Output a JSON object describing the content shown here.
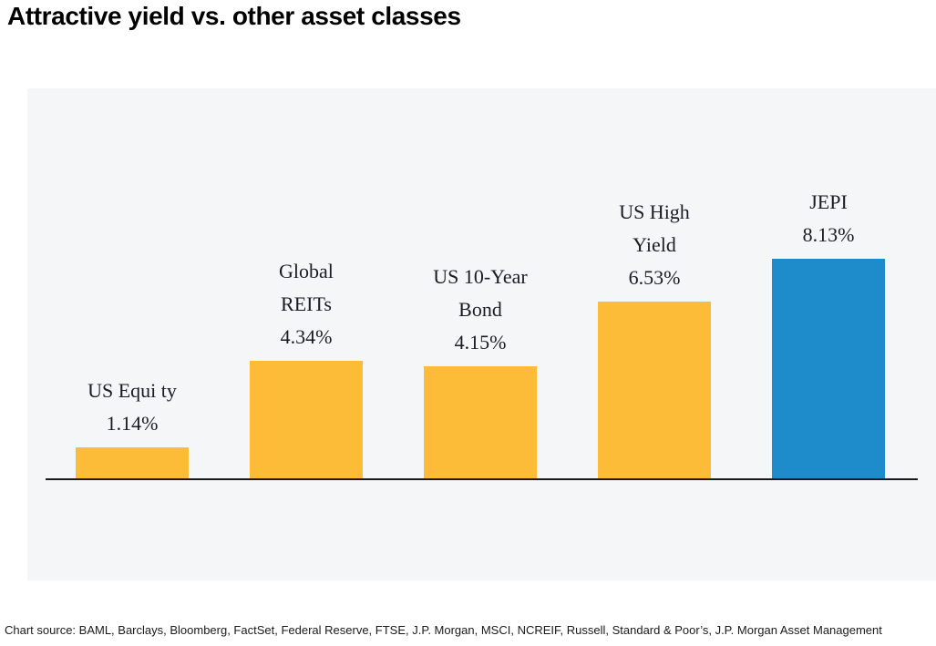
{
  "page": {
    "title": "Attractive yield vs. other asset classes",
    "source_note": "Chart source: BAML, Barclays, Bloomberg, FactSet, Federal Reserve, FTSE, J.P. Morgan, MSCI, NCREIF, Russell, Standard & Poor’s, J.P. Morgan Asset Management"
  },
  "chart_data": {
    "type": "bar",
    "title": "Attractive yield vs. other asset classes",
    "categories": [
      "US Equi ty",
      "Global REITs",
      "US 10-Year Bond",
      "US High Yield",
      "JEPI"
    ],
    "series": [
      {
        "name": "Yield",
        "values": [
          1.14,
          4.34,
          4.15,
          6.53,
          8.13
        ]
      }
    ],
    "points": [
      {
        "label_lines": [
          "US Equi ty"
        ],
        "value": 1.14,
        "value_label": "1.14%",
        "color": "#FCBC38"
      },
      {
        "label_lines": [
          "Global",
          "REITs"
        ],
        "value": 4.34,
        "value_label": "4.34%",
        "color": "#FCBC38"
      },
      {
        "label_lines": [
          "US 10-Year",
          "Bond"
        ],
        "value": 4.15,
        "value_label": "4.15%",
        "color": "#FCBC38"
      },
      {
        "label_lines": [
          "US High",
          "Yield"
        ],
        "value": 6.53,
        "value_label": "6.53%",
        "color": "#FCBC38"
      },
      {
        "label_lines": [
          "JEPI"
        ],
        "value": 8.13,
        "value_label": "8.13%",
        "color": "#1E8CCA"
      }
    ],
    "highlight_index": 4,
    "data_labels": "above-bar",
    "xlabel": "",
    "ylabel": "",
    "ylim": [
      0,
      9
    ],
    "grid": false,
    "legend": "none",
    "axis_shown": "x-baseline-only"
  },
  "colors": {
    "accent_orange": "#FCBC38",
    "accent_blue": "#1E8CCA",
    "panel_background": "#F5F6F8",
    "axis_line": "#1A1A1A",
    "label_text": "#1B1B25",
    "title_text": "#000000"
  }
}
